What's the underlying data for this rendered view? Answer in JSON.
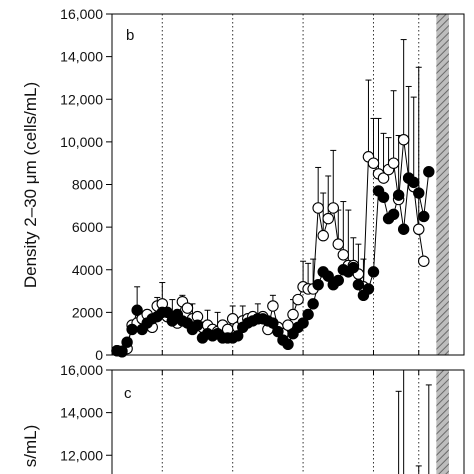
{
  "chart_data": [
    {
      "panel": "b",
      "type": "line",
      "ylabel": "Density 2–30 μm (cells/mL)",
      "ylim": [
        0,
        16000
      ],
      "yticks": [
        0,
        2000,
        4000,
        6000,
        8000,
        10000,
        12000,
        14000,
        16000
      ],
      "ytick_labels": [
        "0",
        "2000",
        "4000",
        "6000",
        "8000",
        "10,000",
        "12,000",
        "14,000",
        "16,000"
      ],
      "xlim": [
        0,
        70
      ],
      "dotted_vlines_x": [
        10,
        24,
        38,
        52,
        61
      ],
      "shaded_band_x": [
        64.5,
        67
      ],
      "grid": false,
      "legend": "none",
      "series": [
        {
          "marker": "filled-circle",
          "color": "#000000",
          "points": [
            {
              "x": 1,
              "y": 200
            },
            {
              "x": 2,
              "y": 180
            },
            {
              "x": 3,
              "y": 600
            },
            {
              "x": 4,
              "y": 1200
            },
            {
              "x": 5,
              "y": 2100
            },
            {
              "x": 6,
              "y": 1200
            },
            {
              "x": 7,
              "y": 1500
            },
            {
              "x": 8,
              "y": 1700
            },
            {
              "x": 9,
              "y": 1800
            },
            {
              "x": 10,
              "y": 2000
            },
            {
              "x": 11,
              "y": 2000
            },
            {
              "x": 12,
              "y": 1600
            },
            {
              "x": 13,
              "y": 1900
            },
            {
              "x": 14,
              "y": 1600
            },
            {
              "x": 15,
              "y": 1500
            },
            {
              "x": 16,
              "y": 1200
            },
            {
              "x": 17,
              "y": 1400
            },
            {
              "x": 18,
              "y": 800
            },
            {
              "x": 19,
              "y": 1000
            },
            {
              "x": 20,
              "y": 900
            },
            {
              "x": 21,
              "y": 1000
            },
            {
              "x": 22,
              "y": 800
            },
            {
              "x": 23,
              "y": 800
            },
            {
              "x": 24,
              "y": 800
            },
            {
              "x": 25,
              "y": 900
            },
            {
              "x": 26,
              "y": 1300
            },
            {
              "x": 27,
              "y": 1500
            },
            {
              "x": 28,
              "y": 1600
            },
            {
              "x": 29,
              "y": 1700
            },
            {
              "x": 30,
              "y": 1700
            },
            {
              "x": 31,
              "y": 1600
            },
            {
              "x": 32,
              "y": 1500
            },
            {
              "x": 33,
              "y": 1100
            },
            {
              "x": 34,
              "y": 700
            },
            {
              "x": 35,
              "y": 500
            },
            {
              "x": 36,
              "y": 1000
            },
            {
              "x": 37,
              "y": 1300
            },
            {
              "x": 38,
              "y": 1500
            },
            {
              "x": 39,
              "y": 1900
            },
            {
              "x": 40,
              "y": 2400
            },
            {
              "x": 41,
              "y": 3300
            },
            {
              "x": 42,
              "y": 3900
            },
            {
              "x": 43,
              "y": 3700
            },
            {
              "x": 44,
              "y": 3300
            },
            {
              "x": 45,
              "y": 3500
            },
            {
              "x": 46,
              "y": 4000
            },
            {
              "x": 47,
              "y": 3900
            },
            {
              "x": 48,
              "y": 4100
            },
            {
              "x": 49,
              "y": 3300
            },
            {
              "x": 50,
              "y": 2800
            },
            {
              "x": 51,
              "y": 3100
            },
            {
              "x": 52,
              "y": 3900
            },
            {
              "x": 53,
              "y": 7700
            },
            {
              "x": 54,
              "y": 7400
            },
            {
              "x": 55,
              "y": 6400
            },
            {
              "x": 56,
              "y": 6600
            },
            {
              "x": 57,
              "y": 7500
            },
            {
              "x": 58,
              "y": 5900
            },
            {
              "x": 59,
              "y": 8300
            },
            {
              "x": 60,
              "y": 8100
            },
            {
              "x": 61,
              "y": 7600
            },
            {
              "x": 62,
              "y": 6500
            },
            {
              "x": 63,
              "y": 8600
            }
          ]
        },
        {
          "marker": "open-circle",
          "color": "#000000",
          "points": [
            {
              "x": 1,
              "y": 200
            },
            {
              "x": 2,
              "y": 150
            },
            {
              "x": 3,
              "y": 300
            },
            {
              "x": 4,
              "y": 1400
            },
            {
              "x": 5,
              "y": 1500
            },
            {
              "x": 6,
              "y": 1700
            },
            {
              "x": 7,
              "y": 1900
            },
            {
              "x": 8,
              "y": 1300
            },
            {
              "x": 9,
              "y": 2300
            },
            {
              "x": 10,
              "y": 2400
            },
            {
              "x": 11,
              "y": 1800
            },
            {
              "x": 12,
              "y": 1600
            },
            {
              "x": 13,
              "y": 1500
            },
            {
              "x": 14,
              "y": 2500
            },
            {
              "x": 15,
              "y": 2200
            },
            {
              "x": 16,
              "y": 1700
            },
            {
              "x": 17,
              "y": 1800
            },
            {
              "x": 18,
              "y": 1300
            },
            {
              "x": 19,
              "y": 1400
            },
            {
              "x": 20,
              "y": 1200
            },
            {
              "x": 21,
              "y": 1100
            },
            {
              "x": 22,
              "y": 1400
            },
            {
              "x": 23,
              "y": 1200
            },
            {
              "x": 24,
              "y": 1700
            },
            {
              "x": 25,
              "y": 1300
            },
            {
              "x": 26,
              "y": 1600
            },
            {
              "x": 27,
              "y": 1700
            },
            {
              "x": 28,
              "y": 1800
            },
            {
              "x": 29,
              "y": 1700
            },
            {
              "x": 30,
              "y": 1800
            },
            {
              "x": 31,
              "y": 1200
            },
            {
              "x": 32,
              "y": 2300
            },
            {
              "x": 33,
              "y": 1300
            },
            {
              "x": 34,
              "y": 1000
            },
            {
              "x": 35,
              "y": 1400
            },
            {
              "x": 36,
              "y": 1900
            },
            {
              "x": 37,
              "y": 2600
            },
            {
              "x": 38,
              "y": 3200
            },
            {
              "x": 39,
              "y": 3100
            },
            {
              "x": 40,
              "y": 3100
            },
            {
              "x": 41,
              "y": 6900
            },
            {
              "x": 42,
              "y": 5600
            },
            {
              "x": 43,
              "y": 6400
            },
            {
              "x": 44,
              "y": 6900
            },
            {
              "x": 45,
              "y": 5200
            },
            {
              "x": 46,
              "y": 4700
            },
            {
              "x": 47,
              "y": 4200
            },
            {
              "x": 48,
              "y": 4200
            },
            {
              "x": 49,
              "y": 3800
            },
            {
              "x": 50,
              "y": 3200
            },
            {
              "x": 51,
              "y": 9300
            },
            {
              "x": 52,
              "y": 9000
            },
            {
              "x": 53,
              "y": 8500
            },
            {
              "x": 54,
              "y": 8300
            },
            {
              "x": 55,
              "y": 8700
            },
            {
              "x": 56,
              "y": 9000
            },
            {
              "x": 57,
              "y": 7300
            },
            {
              "x": 58,
              "y": 10100
            },
            {
              "x": 59,
              "y": 8300
            },
            {
              "x": 60,
              "y": 7900
            },
            {
              "x": 61,
              "y": 5900
            },
            {
              "x": 62,
              "y": 4400
            }
          ],
          "error_bars_upper": [
            {
              "x": 5,
              "y": 3200
            },
            {
              "x": 9,
              "y": 2700
            },
            {
              "x": 10,
              "y": 3400
            },
            {
              "x": 12,
              "y": 2600
            },
            {
              "x": 14,
              "y": 2800
            },
            {
              "x": 16,
              "y": 2400
            },
            {
              "x": 19,
              "y": 2100
            },
            {
              "x": 21,
              "y": 2000
            },
            {
              "x": 24,
              "y": 2300
            },
            {
              "x": 26,
              "y": 2300
            },
            {
              "x": 29,
              "y": 2400
            },
            {
              "x": 32,
              "y": 2800
            },
            {
              "x": 36,
              "y": 2600
            },
            {
              "x": 38,
              "y": 4400
            },
            {
              "x": 39,
              "y": 4300
            },
            {
              "x": 40,
              "y": 4500
            },
            {
              "x": 41,
              "y": 8800
            },
            {
              "x": 42,
              "y": 7600
            },
            {
              "x": 43,
              "y": 8400
            },
            {
              "x": 44,
              "y": 9600
            },
            {
              "x": 45,
              "y": 6800
            },
            {
              "x": 46,
              "y": 7200
            },
            {
              "x": 47,
              "y": 6800
            },
            {
              "x": 48,
              "y": 5500
            },
            {
              "x": 49,
              "y": 5200
            },
            {
              "x": 50,
              "y": 4500
            },
            {
              "x": 51,
              "y": 12900
            },
            {
              "x": 52,
              "y": 11100
            },
            {
              "x": 53,
              "y": 11100
            },
            {
              "x": 54,
              "y": 10400
            },
            {
              "x": 55,
              "y": 10200
            },
            {
              "x": 56,
              "y": 12400
            },
            {
              "x": 57,
              "y": 10300
            },
            {
              "x": 58,
              "y": 14800
            },
            {
              "x": 59,
              "y": 12600
            },
            {
              "x": 60,
              "y": 12100
            },
            {
              "x": 61,
              "y": 13500
            }
          ]
        }
      ]
    },
    {
      "panel": "c",
      "type": "line",
      "ytick_labels": [
        "12,000",
        "14,000",
        "16,000"
      ],
      "yticks": [
        12000,
        14000,
        16000
      ],
      "ylabel_visible": "s/mL)",
      "ylim_top": 16000,
      "dotted_vlines_x": [
        10,
        24,
        38,
        52,
        61
      ],
      "shaded_band_x": [
        64.5,
        67
      ],
      "error_bars_upper": [
        {
          "x": 57,
          "y": 15000
        },
        {
          "x": 58,
          "y": 16000
        },
        {
          "x": 61,
          "y": 11500
        },
        {
          "x": 63,
          "y": 15300
        }
      ]
    }
  ],
  "panel_b": {
    "letter": "b",
    "ylabel": "Density 2–30 μm (cells/mL)",
    "ytick_labels": [
      "0",
      "2000",
      "4000",
      "6000",
      "8000",
      "10,000",
      "12,000",
      "14,000",
      "16,000"
    ]
  },
  "panel_c": {
    "letter": "c",
    "ylabel_fragment": "s/mL)",
    "ytick_labels": [
      "12,000",
      "14,000",
      "16,000"
    ]
  }
}
